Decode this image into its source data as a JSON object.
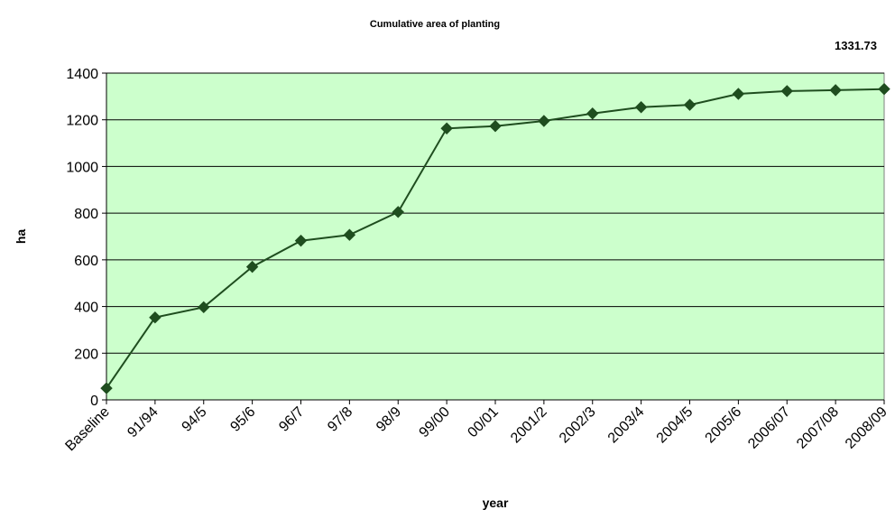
{
  "chart_data": {
    "type": "line",
    "title": "Cumulative area of planting",
    "annotation": "1331.73",
    "xlabel": "year",
    "ylabel": "ha",
    "categories": [
      "Baseline",
      "91/94",
      "94/5",
      "95/6",
      "96/7",
      "97/8",
      "98/9",
      "99/00",
      "00/01",
      "2001/2",
      "2002/3",
      "2003/4",
      "2004/5",
      "2005/6",
      "2006/07",
      "2007/08",
      "2008/09"
    ],
    "series": [
      {
        "values": [
          50,
          353,
          397,
          570,
          682,
          707,
          805,
          1163,
          1173,
          1195,
          1227,
          1254,
          1264,
          1311,
          1323,
          1327,
          1331.73
        ]
      }
    ],
    "ylim": [
      0,
      1400
    ],
    "yticks": [
      0,
      200,
      400,
      600,
      800,
      1000,
      1200,
      1400
    ],
    "grid": true,
    "colors": {
      "plot_bg": "#ccffcc",
      "line": "#1f4d1f",
      "marker": "#1f4d1f",
      "grid": "#000000"
    }
  }
}
